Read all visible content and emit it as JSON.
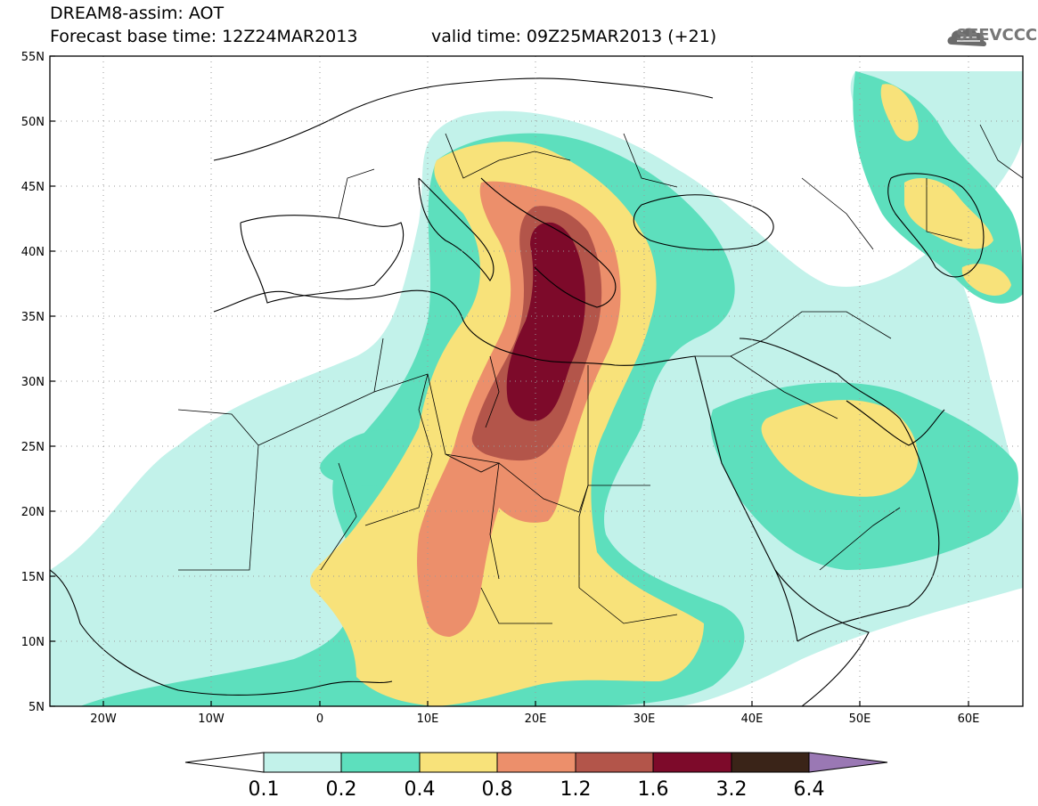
{
  "header": {
    "line1": "DREAM8-assim: AOT",
    "line2": "Forecast base time: 12Z24MAR2013",
    "line3": "valid time: 09Z25MAR2013 (+21)"
  },
  "logo": {
    "text": "SEEVCCC",
    "icon": "cloud-icon"
  },
  "map": {
    "lat_labels": [
      "55N",
      "50N",
      "45N",
      "40N",
      "35N",
      "30N",
      "25N",
      "20N",
      "15N",
      "10N",
      "5N"
    ],
    "lon_labels": [
      "20W",
      "10W",
      "0",
      "10E",
      "20E",
      "30E",
      "40E",
      "50E",
      "60E"
    ]
  },
  "colorbar": {
    "labels": [
      "0.1",
      "0.2",
      "0.4",
      "0.8",
      "1.2",
      "1.6",
      "3.2",
      "6.4"
    ],
    "colors": [
      "#ffffff",
      "#c2f2ea",
      "#5ddfbd",
      "#f8e27a",
      "#ec8f6b",
      "#b3554a",
      "#7d0a2a",
      "#3a2418",
      "#9a78b4"
    ]
  }
}
